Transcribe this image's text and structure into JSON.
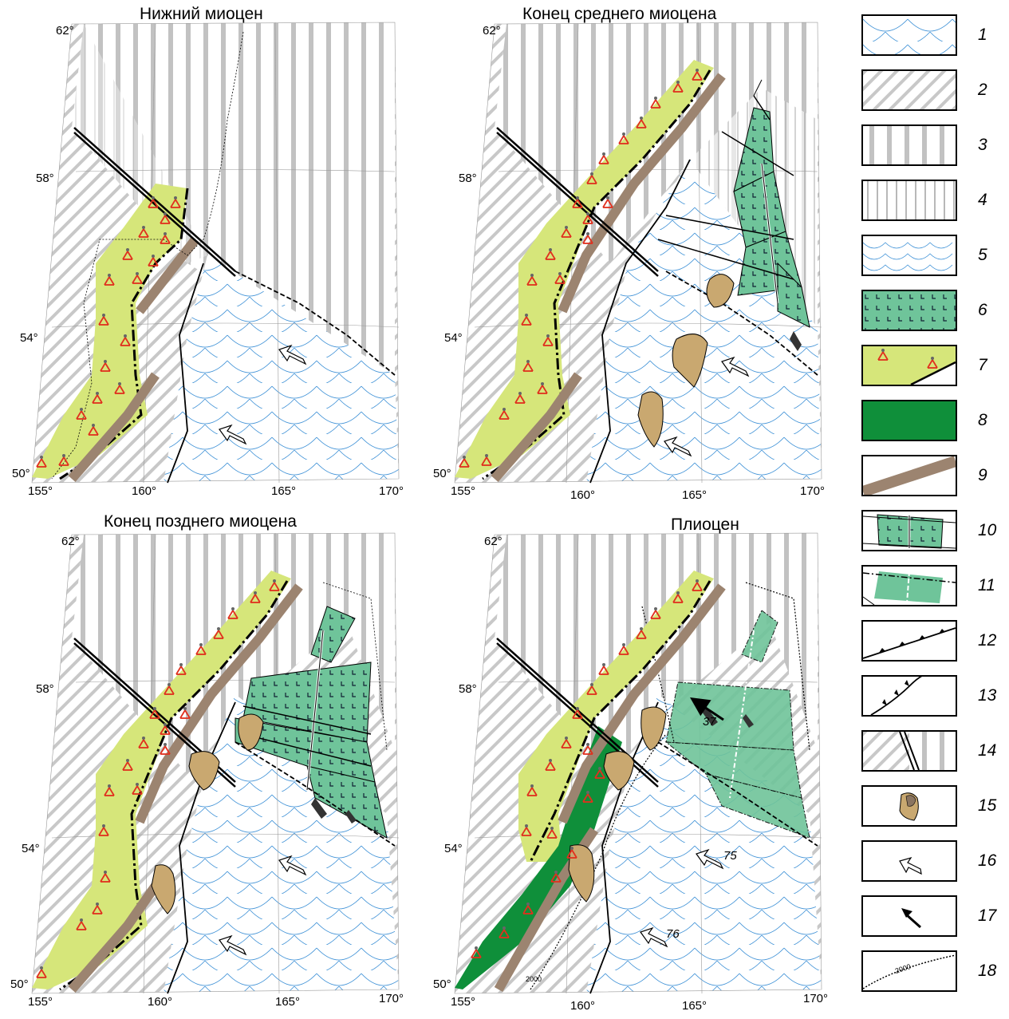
{
  "panels": [
    {
      "id": "p1",
      "title": "Нижний миоцен"
    },
    {
      "id": "p2",
      "title": "Конец среднего миоцена"
    },
    {
      "id": "p3",
      "title": "Конец позднего миоцена"
    },
    {
      "id": "p4",
      "title": "Плиоцен"
    }
  ],
  "axes": {
    "lat_labels": [
      "62°",
      "58°",
      "54°",
      "50°"
    ],
    "lon_labels": [
      "155°",
      "160°",
      "165°",
      "170°"
    ]
  },
  "annotations": {
    "p4_vectors": [
      "37",
      "75",
      "76"
    ],
    "isobath": "2000"
  },
  "legend": {
    "numbers": [
      "1",
      "2",
      "3",
      "4",
      "5",
      "6",
      "7",
      "8",
      "9",
      "10",
      "11",
      "12",
      "13",
      "14",
      "15",
      "16",
      "17",
      "18"
    ]
  },
  "colors": {
    "volcanic_belt": "#d6e67a",
    "forearc_trough": "#9c8470",
    "arc_block": "#6fc49a",
    "arc_dark": "#0f8f3a",
    "seamount": "#c9a870",
    "ocean_lines": "#3a8fd6",
    "volcano": "#e0301e"
  }
}
